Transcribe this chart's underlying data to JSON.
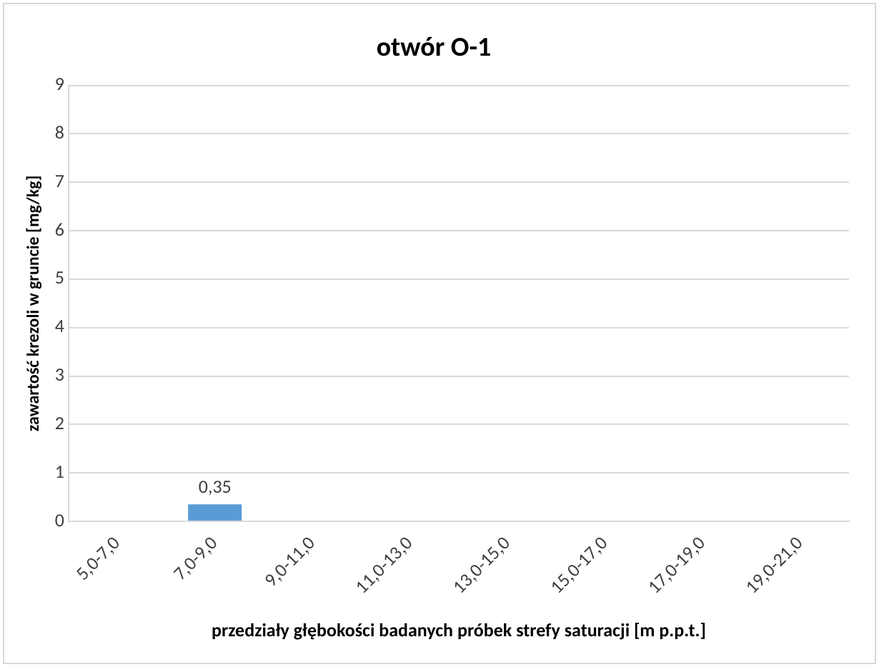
{
  "chart_data": {
    "type": "bar",
    "title": "otwór O-1",
    "xlabel": "przedziały głębokości badanych próbek strefy saturacji [m p.p.t.]",
    "ylabel": "zawartość krezoli w gruncie [mg/kg]",
    "categories": [
      "5,0-7,0",
      "7,0-9,0",
      "9,0-11,0",
      "11,0-13,0",
      "13,0-15,0",
      "15,0-17,0",
      "17,0-19,0",
      "19,0-21,0"
    ],
    "values": [
      null,
      0.35,
      null,
      null,
      null,
      null,
      null,
      null
    ],
    "value_labels": [
      null,
      "0,35",
      null,
      null,
      null,
      null,
      null,
      null
    ],
    "color": "#5b9bd5",
    "ylim": [
      0,
      9
    ],
    "yticks": [
      0,
      1,
      2,
      3,
      4,
      5,
      6,
      7,
      8,
      9
    ],
    "grid": "y",
    "legend": false
  }
}
